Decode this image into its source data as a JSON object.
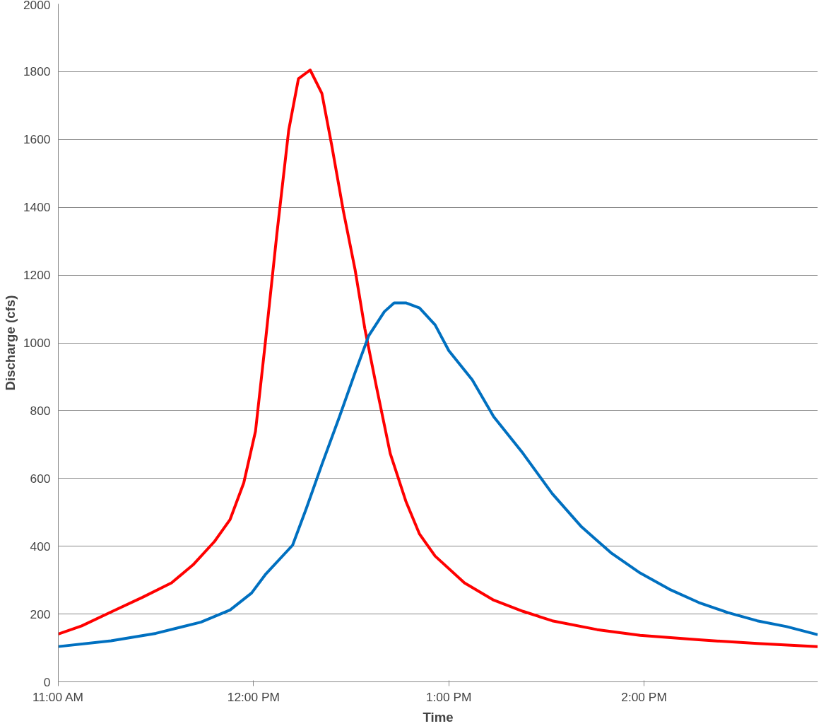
{
  "chart_data": {
    "type": "line",
    "xlabel": "Time",
    "ylabel": "Discharge (cfs)",
    "xlim": [
      11,
      14.89
    ],
    "xticks": [
      {
        "value": 11,
        "label": "11:00 AM"
      },
      {
        "value": 12,
        "label": "12:00 PM"
      },
      {
        "value": 13,
        "label": "1:00 PM"
      },
      {
        "value": 14,
        "label": "2:00 PM"
      }
    ],
    "ylim": [
      0,
      2000
    ],
    "yticks": [
      0,
      200,
      400,
      600,
      800,
      1000,
      1200,
      1400,
      1600,
      1800,
      2000
    ],
    "grid": "y",
    "marker": "none",
    "line_style": "solid",
    "series": [
      {
        "color": "#ff0000",
        "x": [
          11.0,
          11.12,
          11.27,
          11.43,
          11.58,
          11.69,
          11.8,
          11.88,
          11.95,
          12.01,
          12.06,
          12.12,
          12.18,
          12.23,
          12.29,
          12.35,
          12.4,
          12.46,
          12.52,
          12.57,
          12.63,
          12.7,
          12.78,
          12.85,
          12.93,
          13.08,
          13.23,
          13.38,
          13.53,
          13.76,
          13.98,
          14.28,
          14.58,
          14.89
        ],
        "values": [
          141,
          165,
          206,
          249,
          292,
          345,
          414,
          479,
          587,
          739,
          999,
          1324,
          1627,
          1779,
          1805,
          1736,
          1584,
          1389,
          1216,
          1042,
          869,
          674,
          533,
          436,
          371,
          292,
          241,
          208,
          180,
          154,
          137,
          124,
          113,
          104
        ]
      },
      {
        "color": "#0070c0",
        "x": [
          11.0,
          11.27,
          11.5,
          11.73,
          11.88,
          11.99,
          12.06,
          12.2,
          12.27,
          12.35,
          12.44,
          12.52,
          12.59,
          12.67,
          12.72,
          12.78,
          12.85,
          12.93,
          13.0,
          13.12,
          13.23,
          13.38,
          13.53,
          13.68,
          13.83,
          13.98,
          14.13,
          14.28,
          14.43,
          14.58,
          14.73,
          14.89
        ],
        "values": [
          104,
          121,
          143,
          176,
          212,
          262,
          316,
          403,
          511,
          641,
          782,
          912,
          1021,
          1092,
          1118,
          1118,
          1103,
          1053,
          977,
          891,
          782,
          674,
          555,
          457,
          381,
          321,
          273,
          234,
          204,
          180,
          163,
          139
        ]
      }
    ]
  }
}
